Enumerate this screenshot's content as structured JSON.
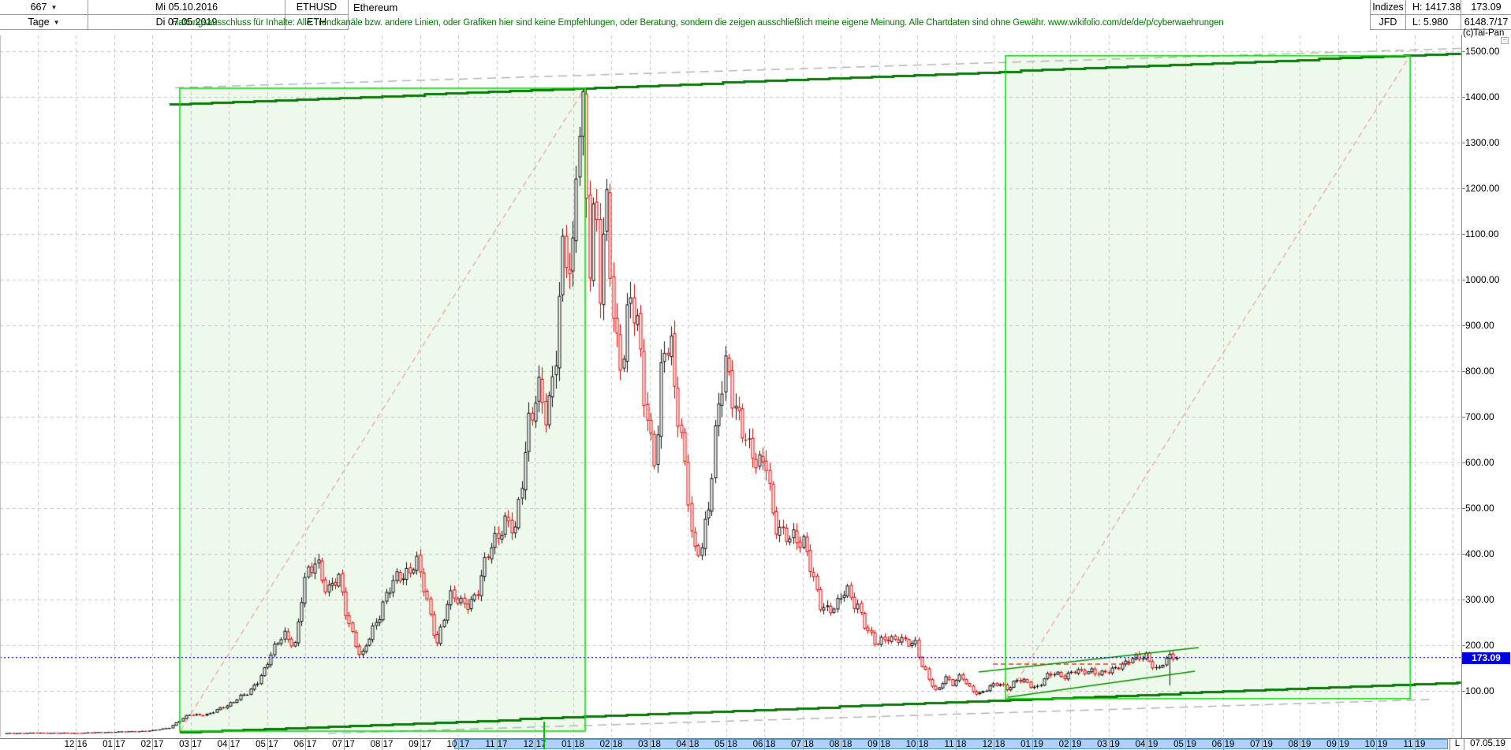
{
  "header": {
    "bars_count": "667",
    "period": "Tage",
    "dropdown_icon": "▼",
    "date_from": "Mi 05.10.2016",
    "date_to": "Di 07.05.2019",
    "symbol": "ETHUSD",
    "symbol_short": "ETH",
    "instrument_name": "Ethereum",
    "provider_row1": "Indizes",
    "provider_row2": "JFD",
    "high_label": "H: 1417.38",
    "low_label": "L: 5.980",
    "last_price": "173.09",
    "extra_value": "6148.7/17",
    "copyright": "(c)Tai-Pan",
    "collapse_glyph": "−",
    "disclaimer": "Haftungsausschluss für Inhalte: Alle Trendkanäle bzw. andere Linien, oder Grafiken hier sind keine Empfehlungen, oder Beratung, sondern die zeigen ausschließlich meine eigene Meinung. Alle Chartdaten sind ohne Gewähr.  www.wikifolio.com/de/de/p/cyberwaehrungen"
  },
  "price_scale": {
    "labels": [
      "1500.00",
      "1400.00",
      "1300.00",
      "1200.00",
      "1100.00",
      "1000.00",
      "900.00",
      "800.00",
      "700.00",
      "600.00",
      "500.00",
      "400.00",
      "300.00",
      "200.00",
      "100.00"
    ],
    "top_value": 1500,
    "step": 100
  },
  "time_scale": {
    "months": [
      "12 16",
      "01 17",
      "02 17",
      "03 17",
      "04 17",
      "05 17",
      "06 17",
      "07 17",
      "08 17",
      "09 17",
      "10 17",
      "11 17",
      "12 17",
      "01 18",
      "02 18",
      "03 18",
      "04 18",
      "05 18",
      "06 18",
      "07 18",
      "08 18",
      "09 18",
      "10 18",
      "11 18",
      "12 18",
      "01 19",
      "02 19",
      "03 19",
      "04 19",
      "05 19",
      "06 19",
      "07 19",
      "08 19",
      "09 19",
      "10 19",
      "11 19"
    ],
    "highlight_from_month": 9.9,
    "highlight_to_month": 35.88,
    "last_label": "L",
    "last_date": "07.05.19"
  },
  "price_marker": {
    "value": "173.09"
  },
  "chart_data": {
    "type": "candlestick",
    "symbol": "ETHUSD",
    "timeframe": "daily (Tage), 667 bars",
    "date_range": [
      "05.10.2016",
      "07.05.2019"
    ],
    "y_axis": {
      "min": 0,
      "max": 1550,
      "gridline_step": 100
    },
    "visible_high": 1417.38,
    "visible_low": 5.98,
    "last_close": 173.09,
    "price_path": [
      [
        0,
        7.5
      ],
      [
        0.028,
        8.5
      ],
      [
        0.059,
        8
      ],
      [
        0.092,
        10.5
      ],
      [
        0.124,
        13
      ],
      [
        0.139,
        20
      ],
      [
        0.157,
        49
      ],
      [
        0.173,
        48
      ],
      [
        0.19,
        72
      ],
      [
        0.207,
        95
      ],
      [
        0.221,
        150
      ],
      [
        0.237,
        230
      ],
      [
        0.247,
        200
      ],
      [
        0.254,
        330
      ],
      [
        0.265,
        400
      ],
      [
        0.274,
        310
      ],
      [
        0.284,
        345
      ],
      [
        0.294,
        240
      ],
      [
        0.303,
        165
      ],
      [
        0.311,
        225
      ],
      [
        0.323,
        300
      ],
      [
        0.334,
        345
      ],
      [
        0.35,
        385
      ],
      [
        0.361,
        275
      ],
      [
        0.368,
        210
      ],
      [
        0.378,
        300
      ],
      [
        0.39,
        295
      ],
      [
        0.402,
        305
      ],
      [
        0.415,
        430
      ],
      [
        0.425,
        470
      ],
      [
        0.435,
        440
      ],
      [
        0.446,
        700
      ],
      [
        0.454,
        750
      ],
      [
        0.462,
        680
      ],
      [
        0.469,
        850
      ],
      [
        0.476,
        1100
      ],
      [
        0.483,
        950
      ],
      [
        0.488,
        1300
      ],
      [
        0.493,
        1417.38
      ],
      [
        0.498,
        1050
      ],
      [
        0.503,
        1180
      ],
      [
        0.507,
        950
      ],
      [
        0.513,
        1150
      ],
      [
        0.52,
        900
      ],
      [
        0.526,
        820
      ],
      [
        0.533,
        940
      ],
      [
        0.541,
        870
      ],
      [
        0.548,
        700
      ],
      [
        0.555,
        590
      ],
      [
        0.561,
        830
      ],
      [
        0.568,
        860
      ],
      [
        0.575,
        700
      ],
      [
        0.581,
        560
      ],
      [
        0.587,
        390
      ],
      [
        0.594,
        420
      ],
      [
        0.6,
        520
      ],
      [
        0.608,
        700
      ],
      [
        0.615,
        805
      ],
      [
        0.622,
        750
      ],
      [
        0.629,
        680
      ],
      [
        0.635,
        610
      ],
      [
        0.642,
        590
      ],
      [
        0.649,
        630
      ],
      [
        0.656,
        460
      ],
      [
        0.664,
        430
      ],
      [
        0.674,
        450
      ],
      [
        0.682,
        420
      ],
      [
        0.689,
        340
      ],
      [
        0.696,
        290
      ],
      [
        0.703,
        285
      ],
      [
        0.709,
        280
      ],
      [
        0.718,
        320
      ],
      [
        0.728,
        290
      ],
      [
        0.735,
        230
      ],
      [
        0.743,
        200
      ],
      [
        0.752,
        225
      ],
      [
        0.758,
        210
      ],
      [
        0.769,
        205
      ],
      [
        0.777,
        210
      ],
      [
        0.782,
        160
      ],
      [
        0.789,
        120
      ],
      [
        0.795,
        95
      ],
      [
        0.802,
        135
      ],
      [
        0.809,
        115
      ],
      [
        0.816,
        130
      ],
      [
        0.824,
        105
      ],
      [
        0.832,
        95
      ],
      [
        0.84,
        105
      ],
      [
        0.848,
        118
      ],
      [
        0.856,
        107
      ],
      [
        0.864,
        122
      ],
      [
        0.872,
        118
      ],
      [
        0.88,
        108
      ],
      [
        0.888,
        128
      ],
      [
        0.896,
        137
      ],
      [
        0.904,
        135
      ],
      [
        0.912,
        143
      ],
      [
        0.92,
        138
      ],
      [
        0.928,
        147
      ],
      [
        0.937,
        138
      ],
      [
        0.945,
        142
      ],
      [
        0.953,
        160
      ],
      [
        0.961,
        172
      ],
      [
        0.969,
        168
      ],
      [
        0.974,
        175
      ],
      [
        0.978,
        165
      ],
      [
        0.984,
        148
      ],
      [
        0.989,
        163
      ],
      [
        0.994,
        170
      ],
      [
        1,
        173.09
      ]
    ],
    "annotations": {
      "channel_top_solid": {
        "from": [
          2.45,
          1383
        ],
        "to": [
          36.22,
          1495
        ]
      },
      "channel_top_dashed": {
        "from": [
          2.6,
          1420
        ],
        "to": [
          36.22,
          1506
        ]
      },
      "channel_bottom_solid": {
        "from": [
          2.72,
          8.6
        ],
        "to": [
          36.22,
          119
        ]
      },
      "channel_bottom_dashed": {
        "from": [
          6.6,
          7
        ],
        "to": [
          35.4,
          81
        ]
      },
      "box_2017_rally": {
        "from_month": 2.72,
        "to_month": 13.32,
        "bottom_price": 12,
        "top_price": 1419
      },
      "box_2019_target": {
        "from_month": 24.31,
        "to_month": 34.89,
        "bottom_price": 83,
        "top_price": 1490
      },
      "wedge_top": {
        "from": [
          23.61,
          141.4
        ],
        "to": [
          29.36,
          194.8
        ]
      },
      "wedge_bottom": {
        "from": [
          24.37,
          86.2
        ],
        "to": [
          29.26,
          143.1
        ]
      },
      "red_resistance_dash": {
        "from": [
          23.98,
          158.6
        ],
        "to": [
          27.57,
          158.6
        ]
      },
      "last_price_line": 173.09
    }
  },
  "colors": {
    "box_border": "#00dd00",
    "box_fill": "rgba(80,200,60,0.10)",
    "channel_solid": "#0b7a0b",
    "channel_dashed": "#b5b5b5",
    "diagonal_dashed": "#f2a0a0",
    "gridline": "#c6c6c6",
    "candle_up": "#101010",
    "candle_down": "#e80000",
    "last_price_line": "#0000cc",
    "resistance_dash": "#e03030",
    "wedge": "#089000",
    "badge_bg": "#0000dd",
    "highlight_bg": "#aed2f7"
  }
}
